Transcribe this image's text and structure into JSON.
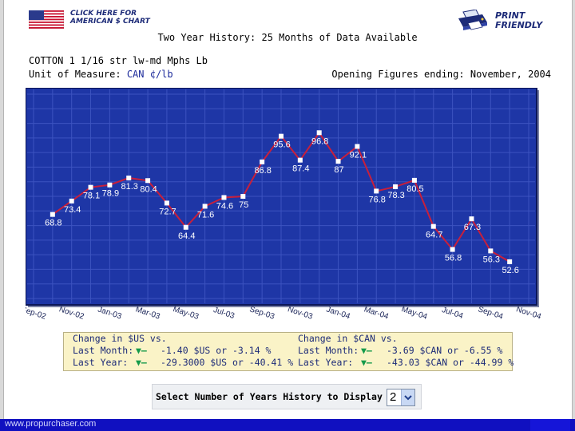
{
  "header": {
    "american_chart_link": "CLICK HERE FOR AMERICAN $ CHART",
    "print_friendly_link": "PRINT FRIENDLY",
    "history_title": "Two Year History: 25 Months of Data Available"
  },
  "commodity": {
    "name": "COTTON 1 1/16 str lw-md Mphs Lb",
    "unit_label": "Unit of Measure:",
    "unit_value": "CAN ¢/lb",
    "opening_label": "Opening Figures",
    "ending_label": "ending:",
    "ending_value": "November, 2004"
  },
  "chart_data": {
    "type": "line",
    "x": [
      "Sep-02",
      "Oct-02",
      "Nov-02",
      "Dec-02",
      "Jan-03",
      "Feb-03",
      "Mar-03",
      "Apr-03",
      "May-03",
      "Jun-03",
      "Jul-03",
      "Aug-03",
      "Sep-03",
      "Oct-03",
      "Nov-03",
      "Dec-03",
      "Jan-04",
      "Feb-04",
      "Mar-04",
      "Apr-04",
      "May-04",
      "Jun-04",
      "Jul-04",
      "Aug-04",
      "Sep-04",
      "Oct-04",
      "Nov-04"
    ],
    "x_tick_labels": [
      "Sep-02",
      "Nov-02",
      "Jan-03",
      "Mar-03",
      "May-03",
      "Jul-03",
      "Sep-03",
      "Nov-03",
      "Jan-04",
      "Mar-04",
      "May-04",
      "Jul-04",
      "Sep-04",
      "Nov-04"
    ],
    "values": [
      null,
      68.8,
      73.4,
      78.1,
      78.9,
      81.3,
      80.4,
      72.7,
      64.4,
      71.6,
      74.6,
      75,
      86.8,
      95.6,
      87.4,
      96.8,
      87,
      92.1,
      76.8,
      78.3,
      80.5,
      64.7,
      56.8,
      67.3,
      56.3,
      52.6,
      null
    ],
    "data_labels": [
      "",
      "68.8",
      "73.4",
      "78.1",
      "78.9",
      "81.3",
      "80.4",
      "72.7",
      "64.4",
      "71.6",
      "74.6",
      "75",
      "86.8",
      "95.6",
      "87.4",
      "96.8",
      "87",
      "92.1",
      "76.8",
      "78.3",
      "80.5",
      "64.7",
      "56.8",
      "67.3",
      "56.3",
      "52.6",
      ""
    ],
    "ylim": [
      40,
      110
    ],
    "grid": true,
    "colors": {
      "background": "#1e36a6",
      "line": "#c71f3c",
      "marker": "#ffffff",
      "grid": "#3c53c0"
    }
  },
  "stats": {
    "usd": {
      "title": "Change in $US vs.",
      "last_month_label": "Last Month:",
      "last_month_arrow": "▼–",
      "last_month_value": "-1.40 $US or -3.14 %",
      "last_year_label": "Last Year:",
      "last_year_arrow": "▼–",
      "last_year_value": "-29.3000 $US or -40.41 %"
    },
    "cad": {
      "title": "Change in $CAN vs.",
      "last_month_label": "Last Month:",
      "last_month_arrow": "▼–",
      "last_month_value": "-3.69 $CAN or -6.55 %",
      "last_year_label": "Last Year:",
      "last_year_arrow": "▼–",
      "last_year_value": "-43.03 $CAN or -44.99 %"
    }
  },
  "selector": {
    "label": "Select Number of Years History to Display",
    "value": "2"
  },
  "footer": {
    "url": "www.propurchaser.com"
  },
  "colors": {
    "accent_text": "#1d2b78",
    "down_arrow": "#149a4a",
    "stats_bg": "#faf3c7",
    "footer_bg": "#1010c0"
  },
  "icons": {
    "flag": "us-flag-icon",
    "print": "printer-icon",
    "dropdown": "chevron-down-icon"
  }
}
